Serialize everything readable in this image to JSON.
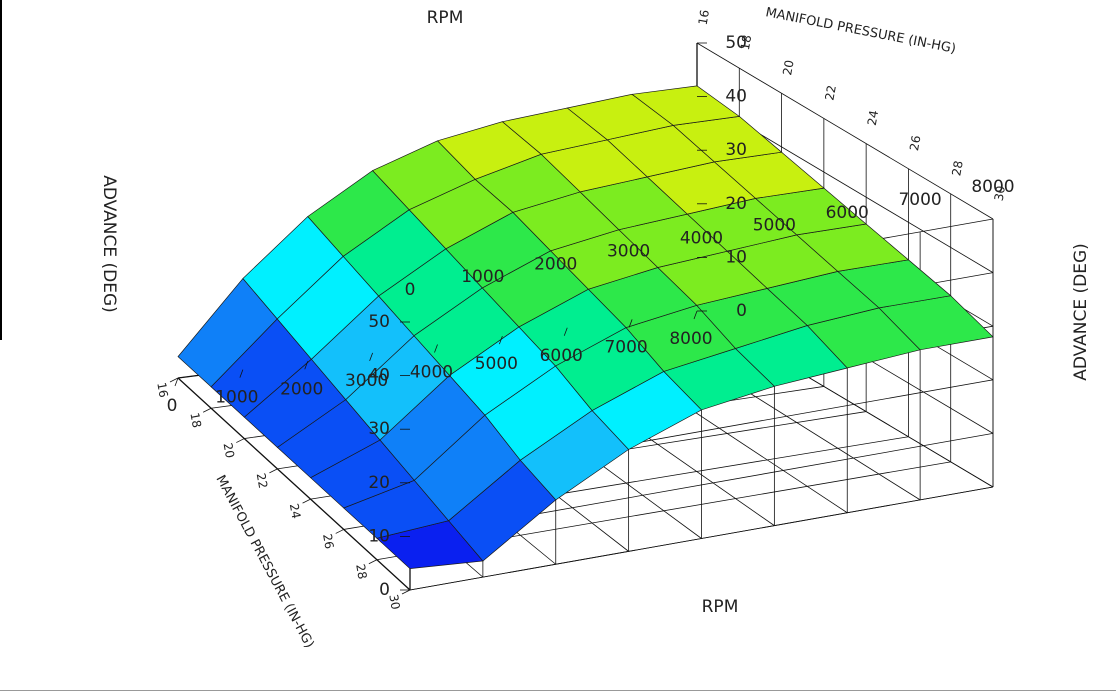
{
  "chart_data": {
    "type": "surface",
    "x": {
      "label": "RPM",
      "ticks": [
        0,
        1000,
        2000,
        3000,
        4000,
        5000,
        6000,
        7000,
        8000
      ],
      "range": [
        0,
        8000
      ]
    },
    "y": {
      "label": "MANIFOLD PRESSURE (IN-HG)",
      "ticks": [
        16,
        18,
        20,
        22,
        24,
        26,
        28,
        30
      ],
      "range": [
        16,
        30
      ]
    },
    "z": {
      "label": "ADVANCE (DEG)",
      "ticks": [
        0,
        10,
        20,
        30,
        40,
        50
      ],
      "range": [
        0,
        50
      ]
    },
    "rpm": [
      0,
      1000,
      2000,
      3000,
      4000,
      5000,
      6000,
      7000,
      8000
    ],
    "map": [
      16,
      18,
      20,
      22,
      24,
      26,
      28,
      30
    ],
    "advance": [
      [
        4,
        4,
        4,
        4,
        4,
        4,
        4,
        4
      ],
      [
        17,
        15,
        13,
        11,
        9,
        7,
        5,
        3
      ],
      [
        27,
        25,
        23,
        21,
        19,
        17,
        14,
        12
      ],
      [
        34,
        32,
        30,
        28,
        26,
        24,
        21,
        19
      ],
      [
        38,
        36,
        35,
        33,
        31,
        29,
        26,
        24
      ],
      [
        40,
        39,
        37,
        35,
        33,
        31,
        28,
        26
      ],
      [
        41,
        40,
        38,
        36,
        34,
        32,
        30,
        27
      ],
      [
        42,
        41,
        39,
        37,
        35,
        33,
        31,
        28
      ],
      [
        42,
        41,
        39,
        37,
        35,
        33,
        31,
        28
      ]
    ],
    "colormap": [
      "#0a20f0",
      "#0a4ff5",
      "#0f80f8",
      "#13c0fb",
      "#00f0ff",
      "#00ee90",
      "#2de84a",
      "#7cec20",
      "#c8f010",
      "#f4f400"
    ],
    "grid": true
  }
}
